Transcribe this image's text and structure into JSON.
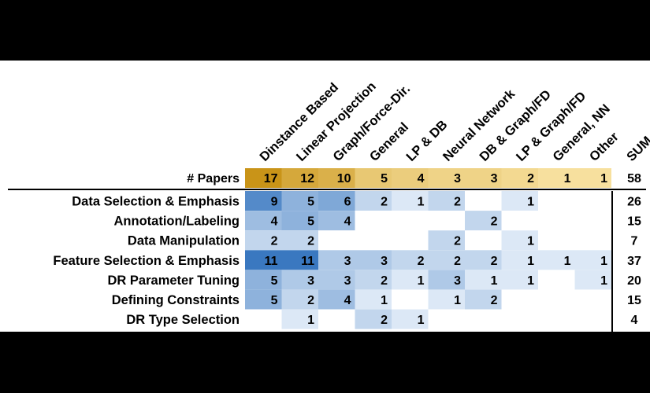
{
  "chart_data": {
    "type": "heatmap",
    "columns": [
      "Dinstance Based",
      "Linear Projection",
      "Graph/Force-Dir.",
      "General",
      "LP & DB",
      "Neural Network",
      "DB & Graph/FD",
      "LP & Graph/FD",
      "General, NN",
      "Other"
    ],
    "sum_label": "SUM",
    "papers_label": "# Papers",
    "papers": [
      17,
      12,
      10,
      5,
      4,
      3,
      3,
      2,
      1,
      1
    ],
    "papers_sum": 58,
    "rows": [
      {
        "label": "Data Selection & Emphasis",
        "values": [
          9,
          5,
          6,
          2,
          1,
          2,
          null,
          1,
          null,
          null
        ],
        "sum": 26
      },
      {
        "label": "Annotation/Labeling",
        "values": [
          4,
          5,
          4,
          null,
          null,
          null,
          2,
          null,
          null,
          null
        ],
        "sum": 15
      },
      {
        "label": "Data Manipulation",
        "values": [
          2,
          2,
          null,
          null,
          null,
          2,
          null,
          1,
          null,
          null
        ],
        "sum": 7
      },
      {
        "label": "Feature Selection & Emphasis",
        "values": [
          11,
          11,
          3,
          3,
          2,
          2,
          2,
          1,
          1,
          1
        ],
        "sum": 37
      },
      {
        "label": "DR Parameter Tuning",
        "values": [
          5,
          3,
          3,
          2,
          1,
          3,
          1,
          1,
          null,
          1
        ],
        "sum": 20
      },
      {
        "label": "Defining Constraints",
        "values": [
          5,
          2,
          4,
          1,
          null,
          1,
          2,
          null,
          null,
          null
        ],
        "sum": 15
      },
      {
        "label": "DR Type Selection",
        "values": [
          null,
          1,
          null,
          2,
          1,
          null,
          null,
          null,
          null,
          null
        ],
        "sum": 4
      }
    ],
    "colors": {
      "blue_low": "#dce8f6",
      "blue_high": "#3a78c0",
      "gold_low": "#fdeab0",
      "gold_high": "#c99418",
      "rule": "#000000"
    }
  }
}
